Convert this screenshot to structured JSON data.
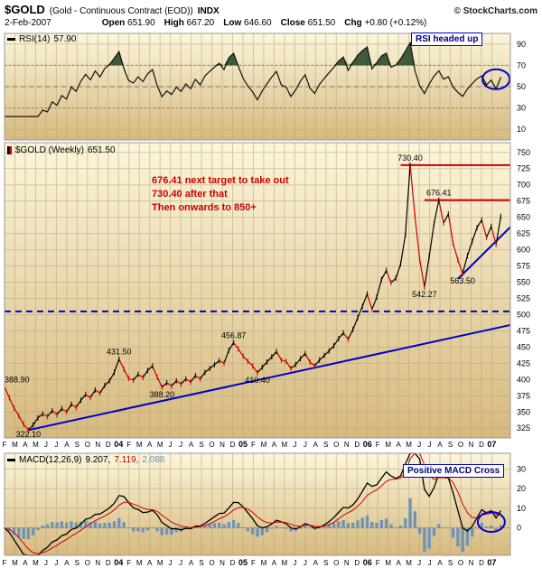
{
  "header": {
    "symbol": "$GOLD",
    "name": "(Gold - Continuous Contract (EOD))",
    "exchange": "INDX",
    "copyright": "© StockCharts.com",
    "date": "2-Feb-2007",
    "quote": {
      "open_label": "Open",
      "open": "651.90",
      "high_label": "High",
      "high": "667.20",
      "low_label": "Low",
      "low": "646.60",
      "close_label": "Close",
      "close": "651.50",
      "chg_label": "Chg",
      "chg": "+0.80 (+0.12%)"
    }
  },
  "panels": {
    "rsi": {
      "label": "RSI(14)",
      "value": "57.90",
      "note": "RSI headed up"
    },
    "price": {
      "label": "$GOLD (Weekly)",
      "value": "651.50"
    },
    "macd": {
      "label": "MACD(12,26,9)",
      "v1": "9.207,",
      "v2": "7.119,",
      "v3": "2.088",
      "note": "Positive MACD Cross"
    }
  },
  "target_note": {
    "line1": "676.41 next target to take out",
    "line2": "730.40 after that",
    "line3": "Then onwards to 850+"
  },
  "chart_data": {
    "type": "line",
    "title": "$GOLD (Gold - Continuous Contract (EOD)) INDX - Weekly",
    "x_unit": "weeks since 1-Feb-2003, series sampled every 2 weeks",
    "x_domain": [
      0,
      212
    ],
    "x_tick_step": 4.345,
    "x_ticks": [
      "F",
      "M",
      "A",
      "M",
      "J",
      "J",
      "A",
      "S",
      "O",
      "N",
      "D",
      "04",
      "F",
      "M",
      "A",
      "M",
      "J",
      "J",
      "A",
      "S",
      "O",
      "N",
      "D",
      "05",
      "F",
      "M",
      "A",
      "M",
      "J",
      "J",
      "A",
      "S",
      "O",
      "N",
      "D",
      "06",
      "F",
      "M",
      "A",
      "M",
      "J",
      "J",
      "A",
      "S",
      "O",
      "N",
      "D",
      "07"
    ],
    "colors": {
      "bg_top": "#FCF6DC",
      "bg_bottom": "#D6B97E",
      "grid": "#B9A575",
      "up": "#000000",
      "down": "#CC0000",
      "trend": "#0000CC",
      "support_dashed": "#0000CC",
      "resistance": "#CC0000",
      "rsi_line": "#111111",
      "rsi_fill": "#2D4A2D",
      "macd_line": "#000000",
      "macd_signal": "#CC0000",
      "macd_hist": "#7094B8",
      "annotation_blue": "#000080",
      "annotation_red": "#CC0000"
    },
    "panels": {
      "rsi": {
        "indicator": "RSI(14)",
        "period": 14,
        "last": 57.9,
        "ylim": [
          0,
          100
        ],
        "yticks": [
          90,
          70,
          50,
          30,
          10
        ],
        "overbought": 70,
        "oversold": 30,
        "midline": 50
      },
      "price": {
        "series": "$GOLD weekly close (estimated from chart)",
        "last": 651.5,
        "ylim": [
          310,
          765
        ],
        "yticks": [
          750,
          725,
          700,
          675,
          650,
          625,
          600,
          575,
          550,
          525,
          500,
          475,
          450,
          425,
          400,
          375,
          350,
          325
        ],
        "closes": [
          388.9,
          372,
          356,
          344,
          331,
          322.1,
          330,
          341,
          347,
          343,
          352,
          346,
          355,
          350,
          362,
          357,
          368,
          377,
          372,
          384,
          379,
          391,
          398,
          411,
          431.5,
          416,
          402,
          399,
          408,
          403,
          414,
          421,
          404,
          388.2,
          395,
          390,
          398,
          393,
          401,
          396,
          406,
          401,
          411,
          417,
          423,
          429,
          425,
          445,
          456.87,
          447,
          436,
          428,
          421,
          410.4,
          419,
          427,
          435,
          443,
          430,
          428,
          417,
          423,
          432,
          440,
          427,
          421,
          430,
          437,
          444,
          452,
          463,
          472,
          462,
          477,
          495,
          513,
          532,
          508,
          527,
          554,
          568,
          549,
          556,
          578,
          623,
          730.4,
          652,
          585,
          542.27,
          590,
          640,
          676.41,
          641,
          655,
          610,
          584,
          563.5,
          591,
          613,
          634,
          646,
          619,
          636,
          608,
          651.5
        ]
      },
      "macd": {
        "indicator": "MACD(12,26,9)",
        "macd": 9.207,
        "signal": 7.119,
        "hist": 2.088,
        "ylim": [
          -14,
          38
        ],
        "yticks": [
          30,
          20,
          10,
          0
        ]
      }
    },
    "annotations": {
      "price_labels": [
        {
          "week": 0,
          "price": 388.9,
          "text": "388.90",
          "pos": "above",
          "anchor": "start"
        },
        {
          "week": 10,
          "price": 322.1,
          "text": "322.10",
          "pos": "below"
        },
        {
          "week": 48,
          "price": 431.5,
          "text": "431.50",
          "pos": "above"
        },
        {
          "week": 66,
          "price": 388.2,
          "text": "388.20",
          "pos": "below"
        },
        {
          "week": 96,
          "price": 456.87,
          "text": "456.87",
          "pos": "above"
        },
        {
          "week": 106,
          "price": 410.4,
          "text": "410.40",
          "pos": "below"
        },
        {
          "week": 170,
          "price": 730.4,
          "text": "730.40",
          "pos": "above"
        },
        {
          "week": 176,
          "price": 542.27,
          "text": "542.27",
          "pos": "below"
        },
        {
          "week": 182,
          "price": 676.41,
          "text": "676.41",
          "pos": "above"
        },
        {
          "week": 192,
          "price": 563.5,
          "text": "563.50",
          "pos": "below"
        }
      ],
      "hlines": [
        {
          "price": 505,
          "from": 0,
          "to": 212,
          "hex": "#0000CC",
          "dash": true,
          "width": 2,
          "name": "support-dashed-line"
        },
        {
          "price": 730.4,
          "from": 166,
          "to": 212,
          "hex": "#CC0000",
          "dash": false,
          "width": 2,
          "name": "resistance-line-730"
        },
        {
          "price": 676.4,
          "from": 176,
          "to": 212,
          "hex": "#CC0000",
          "dash": false,
          "width": 2,
          "name": "resistance-line-676"
        }
      ],
      "trendlines": [
        {
          "from": [
            10,
            322.1
          ],
          "to": [
            212,
            484
          ],
          "name": "long-uptrend-line"
        },
        {
          "from": [
            190,
            555
          ],
          "to": [
            212,
            635
          ],
          "name": "short-uptrend-line"
        }
      ],
      "ellipses": [
        {
          "panel": "rsi",
          "week": 206,
          "value": 57,
          "name": "rsi-highlight-ellipse"
        },
        {
          "panel": "macd",
          "week": 204,
          "value": 3,
          "name": "macd-cross-ellipse"
        }
      ]
    }
  }
}
